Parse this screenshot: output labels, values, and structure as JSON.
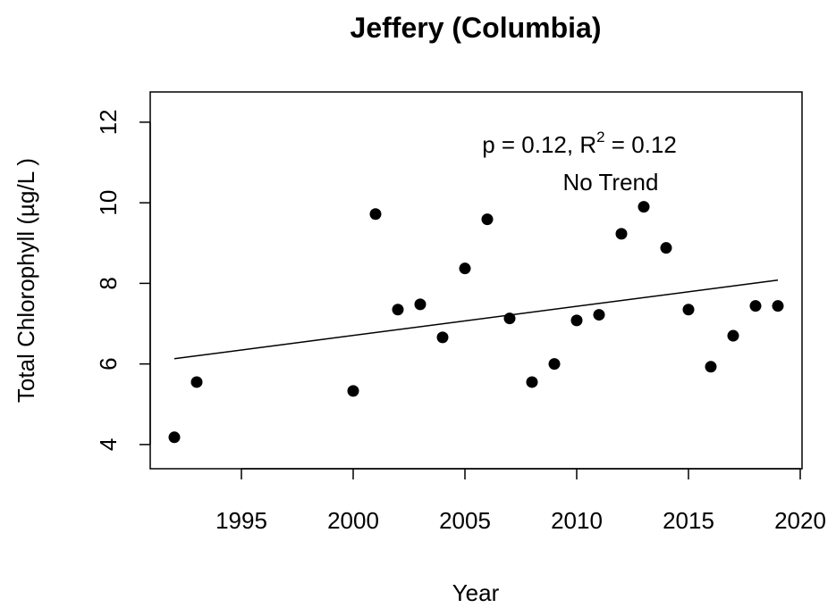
{
  "chart_data": {
    "type": "scatter",
    "title": "Jeffery (Columbia)",
    "x_label": "Year",
    "y_label": "Total Chlorophyll (µg/L )",
    "annotations": [
      {
        "text": "p = 0.12, R",
        "sup": "2",
        "after": " = 0.12"
      },
      {
        "text": "No Trend"
      }
    ],
    "series": [
      {
        "type": "scatter",
        "color": "#000000",
        "x": [
          1992,
          1993,
          2000,
          2001,
          2002,
          2003,
          2004,
          2005,
          2006,
          2007,
          2008,
          2009,
          2010,
          2011,
          2012,
          2013,
          2014,
          2015,
          2016,
          2017,
          2018,
          2019
        ],
        "values": [
          4.18,
          5.55,
          5.33,
          9.72,
          7.35,
          7.48,
          6.66,
          8.37,
          9.59,
          7.13,
          5.55,
          6.0,
          7.08,
          7.22,
          9.23,
          9.9,
          8.88,
          7.35,
          5.93,
          6.7,
          7.44,
          7.44
        ]
      },
      {
        "type": "line",
        "color": "#000000",
        "x": [
          1992,
          2019
        ],
        "values": [
          6.13,
          8.08
        ]
      }
    ],
    "xlim": [
      1990.92,
      2020.08
    ],
    "xticks": [
      1995,
      2000,
      2005,
      2010,
      2015,
      2020
    ],
    "ylim": [
      3.4,
      12.75
    ],
    "yticks": [
      4,
      6,
      8,
      10,
      12
    ],
    "grid": false
  }
}
